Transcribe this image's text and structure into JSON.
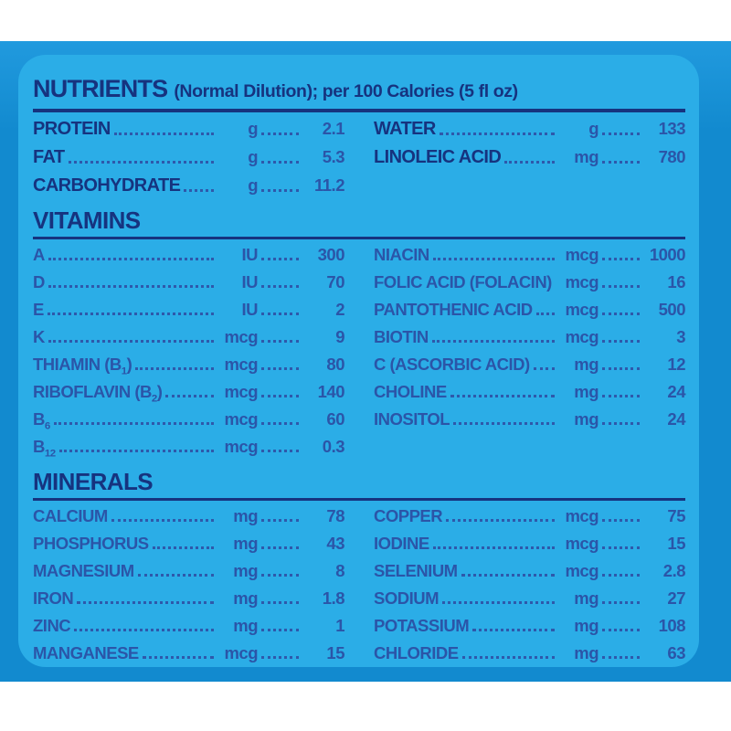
{
  "colors": {
    "frame": "#128acf",
    "frame-hi": "#219ade",
    "panel": "#2bade7",
    "heading": "#16337f",
    "row": "#2b55a8",
    "dots": "#2e59ab"
  },
  "header": {
    "title": "NUTRIENTS",
    "subtitle": "(Normal Dilution); per 100 Calories (5 fl oz)"
  },
  "macronutrients": {
    "left": [
      {
        "label": "PROTEIN",
        "unit": "g",
        "value": "2.1"
      },
      {
        "label": "FAT",
        "unit": "g",
        "value": "5.3"
      },
      {
        "label": "CARBOHYDRATE",
        "unit": "g",
        "value": "11.2"
      }
    ],
    "right": [
      {
        "label": "WATER",
        "unit": "g",
        "value": "133"
      },
      {
        "label": "LINOLEIC ACID",
        "unit": "mg",
        "value": "780"
      }
    ]
  },
  "sections": [
    {
      "title": "VITAMINS",
      "left": [
        {
          "label": "A",
          "unit": "IU",
          "value": "300"
        },
        {
          "label": "D",
          "unit": "IU",
          "value": "70"
        },
        {
          "label": "E",
          "unit": "IU",
          "value": "2"
        },
        {
          "label": "K",
          "unit": "mcg",
          "value": "9"
        },
        {
          "label": "THIAMIN (B",
          "sub": "1",
          "after": ")",
          "unit": "mcg",
          "value": "80"
        },
        {
          "label": "RIBOFLAVIN (B",
          "sub": "2",
          "after": ")",
          "unit": "mcg",
          "value": "140"
        },
        {
          "label": "B",
          "sub": "6",
          "after": "",
          "unit": "mcg",
          "value": "60"
        },
        {
          "label": "B",
          "sub": "12",
          "after": "",
          "unit": "mcg",
          "value": "0.3"
        }
      ],
      "right": [
        {
          "label": "NIACIN",
          "unit": "mcg",
          "value": "1000"
        },
        {
          "label": "FOLIC ACID (FOLACIN)",
          "unit": "mcg",
          "value": "16"
        },
        {
          "label": "PANTOTHENIC ACID",
          "unit": "mcg",
          "value": "500"
        },
        {
          "label": "BIOTIN",
          "unit": "mcg",
          "value": "3"
        },
        {
          "label": "C (ASCORBIC ACID)",
          "unit": "mg",
          "value": "12"
        },
        {
          "label": "CHOLINE",
          "unit": "mg",
          "value": "24"
        },
        {
          "label": "INOSITOL",
          "unit": "mg",
          "value": "24"
        }
      ]
    },
    {
      "title": "MINERALS",
      "left": [
        {
          "label": "CALCIUM",
          "unit": "mg",
          "value": "78"
        },
        {
          "label": "PHOSPHORUS",
          "unit": "mg",
          "value": "43"
        },
        {
          "label": "MAGNESIUM",
          "unit": "mg",
          "value": "8"
        },
        {
          "label": "IRON",
          "unit": "mg",
          "value": "1.8"
        },
        {
          "label": "ZINC",
          "unit": "mg",
          "value": "1"
        },
        {
          "label": "MANGANESE",
          "unit": "mcg",
          "value": "15"
        }
      ],
      "right": [
        {
          "label": "COPPER",
          "unit": "mcg",
          "value": "75"
        },
        {
          "label": "IODINE",
          "unit": "mcg",
          "value": "15"
        },
        {
          "label": "SELENIUM",
          "unit": "mcg",
          "value": "2.8"
        },
        {
          "label": "SODIUM",
          "unit": "mg",
          "value": "27"
        },
        {
          "label": "POTASSIUM",
          "unit": "mg",
          "value": "108"
        },
        {
          "label": "CHLORIDE",
          "unit": "mg",
          "value": "63"
        }
      ]
    }
  ]
}
